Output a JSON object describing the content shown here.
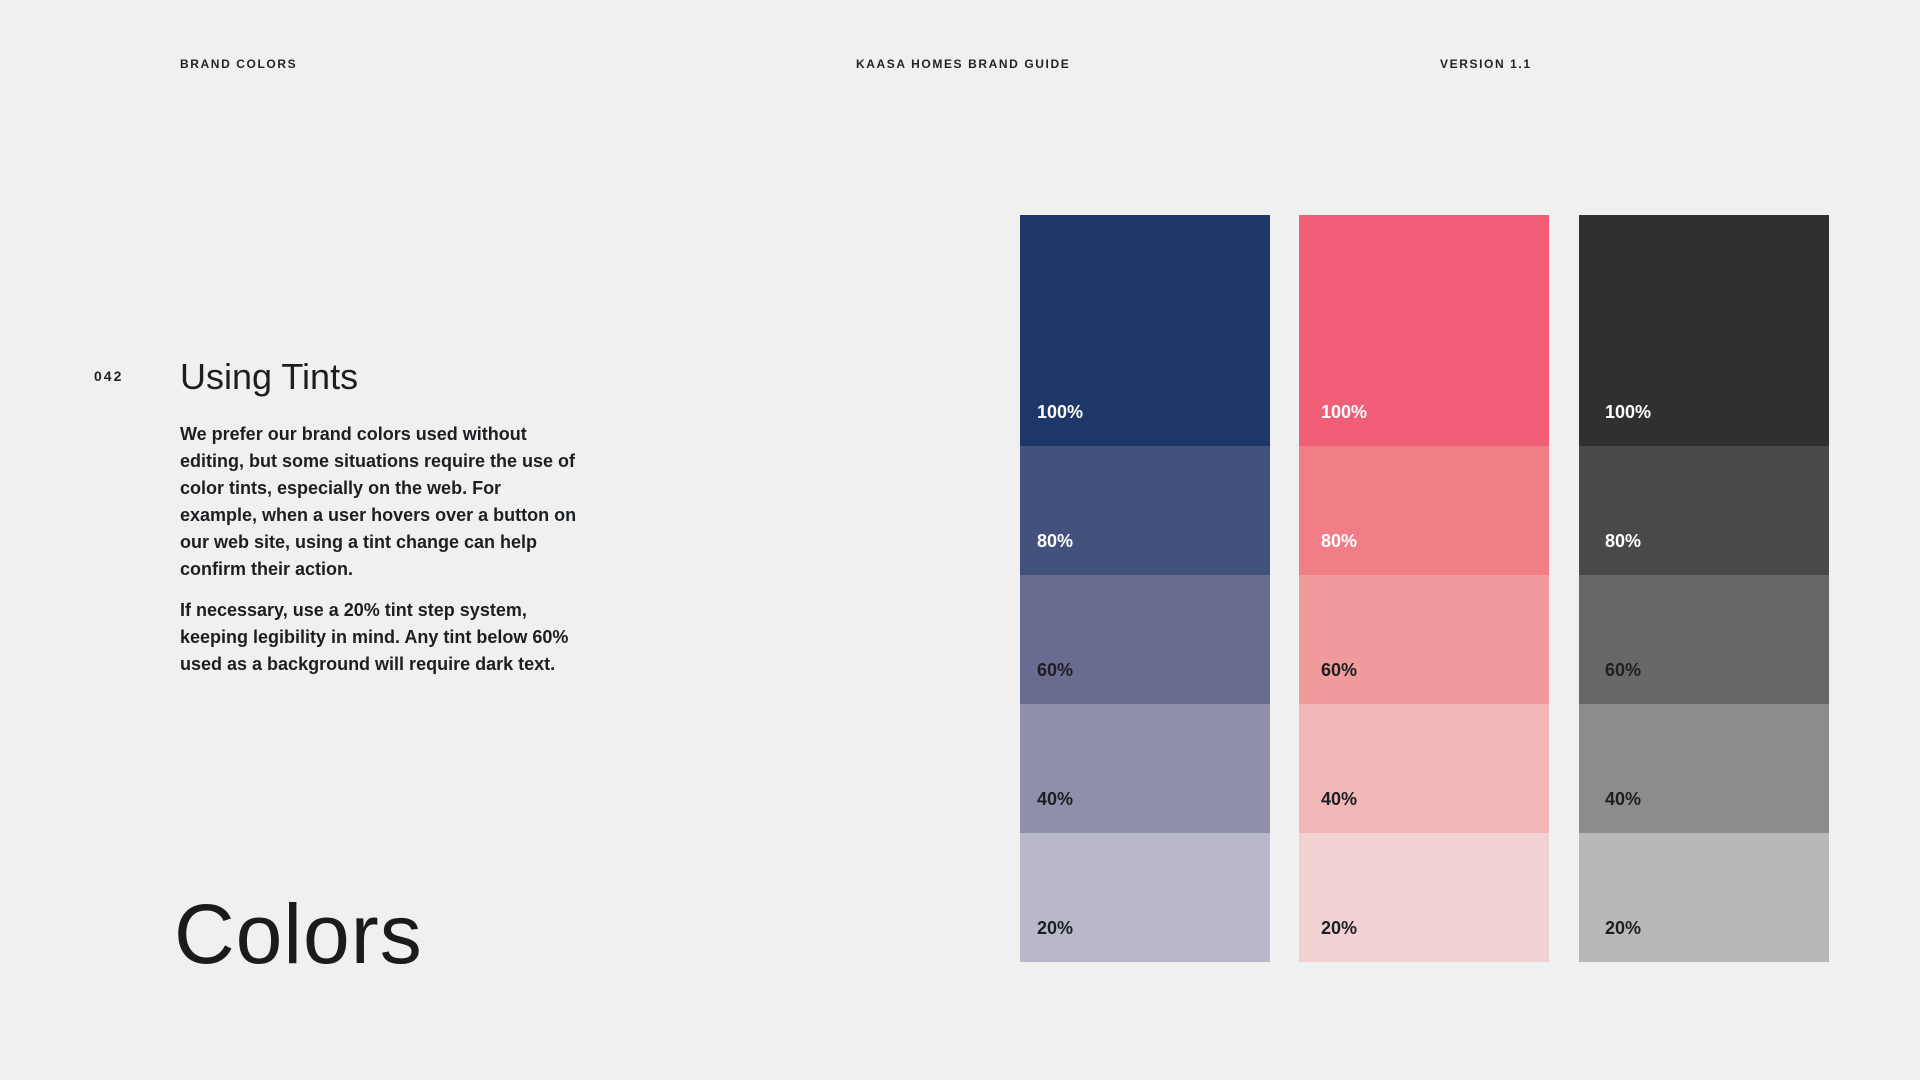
{
  "header": {
    "section": "BRAND COLORS",
    "guide_title": "KAASA HOMES BRAND GUIDE",
    "version": "VERSION 1.1"
  },
  "page_number": "042",
  "content": {
    "heading": "Using Tints",
    "paragraph_1": "We prefer our brand colors used without editing, but some situations require the use of color tints, especially on the web. For example, when a user hovers over a button on our web site, using a tint change can help confirm their action.",
    "paragraph_2": "If necessary, use a 20% tint step system, keeping legibility in mind. Any tint below 60% used as a background will require dark text."
  },
  "big_title": "Colors",
  "palettes": {
    "navy": {
      "tints": [
        {
          "label": "100%",
          "color": "#1f3669"
        },
        {
          "label": "80%",
          "color": "#43517d"
        },
        {
          "label": "60%",
          "color": "#6a6b91"
        },
        {
          "label": "40%",
          "color": "#8f8eab"
        },
        {
          "label": "20%",
          "color": "#b8b8ca"
        }
      ]
    },
    "pink": {
      "tints": [
        {
          "label": "100%",
          "color": "#f05e78"
        },
        {
          "label": "80%",
          "color": "#f17d87"
        },
        {
          "label": "60%",
          "color": "#f09a9b"
        },
        {
          "label": "40%",
          "color": "#f2b6b6"
        },
        {
          "label": "20%",
          "color": "#f1d2d2"
        }
      ]
    },
    "charcoal": {
      "tints": [
        {
          "label": "100%",
          "color": "#303030"
        },
        {
          "label": "80%",
          "color": "#4a4949"
        },
        {
          "label": "60%",
          "color": "#686766"
        },
        {
          "label": "40%",
          "color": "#8c8c8a"
        },
        {
          "label": "20%",
          "color": "#b8b8b6"
        }
      ]
    }
  }
}
